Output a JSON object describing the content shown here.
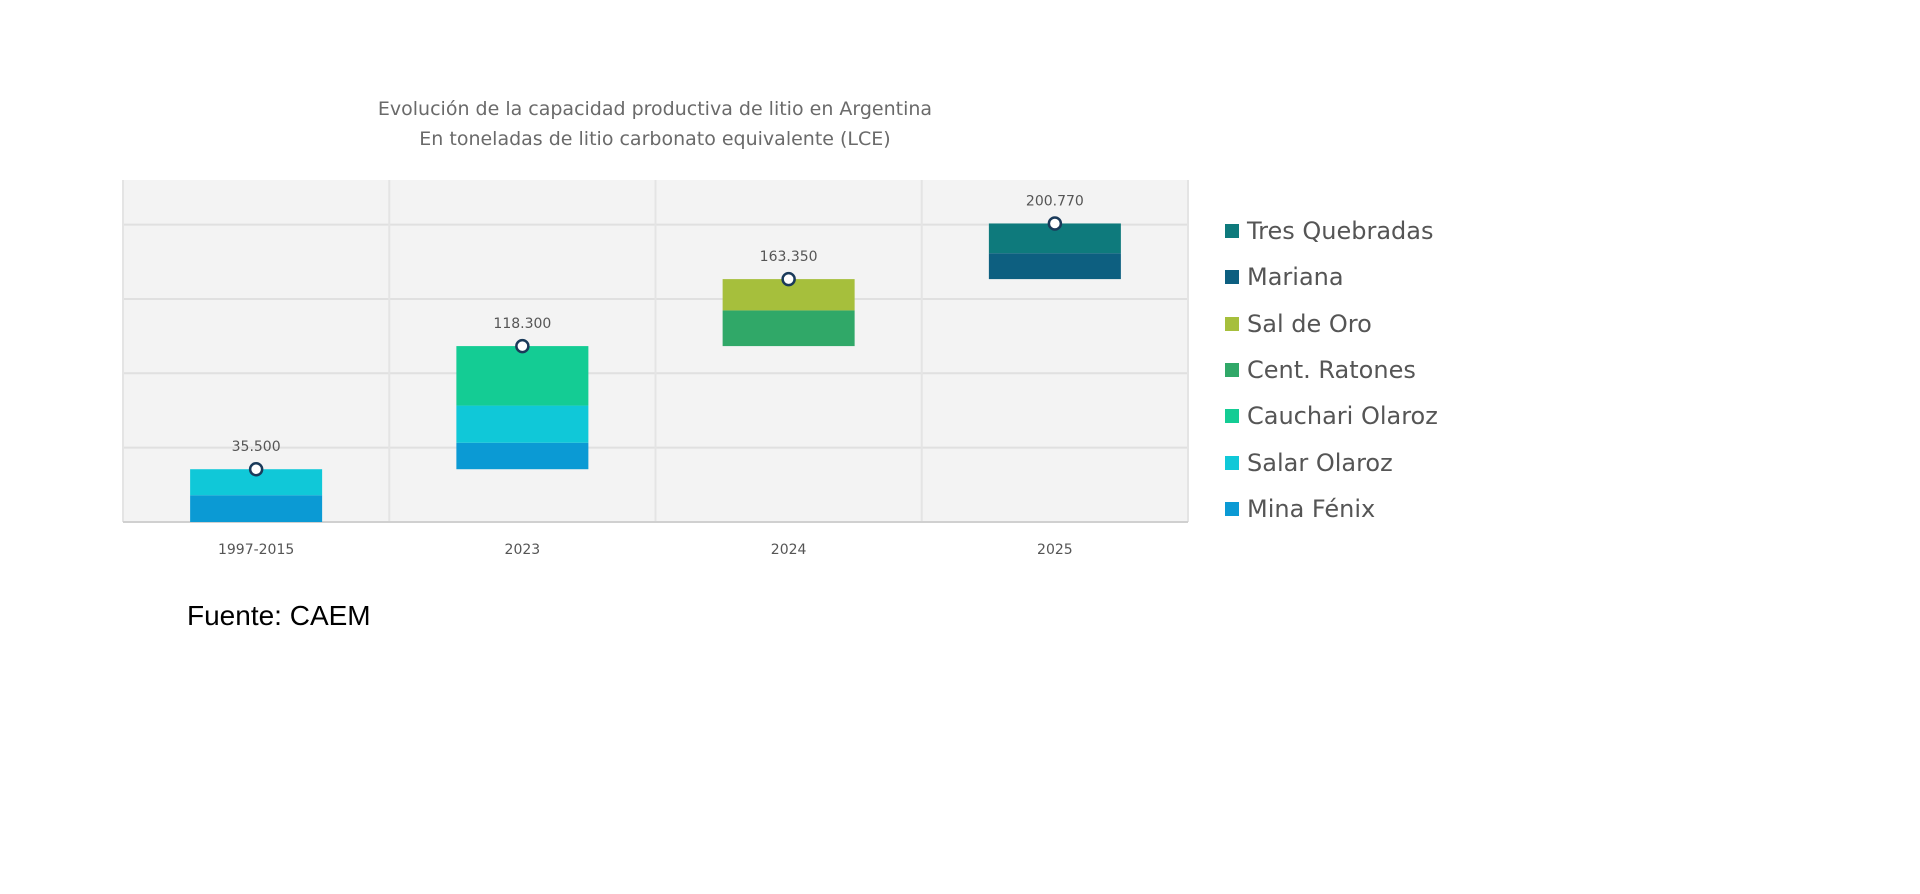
{
  "chart_data": {
    "type": "waterfall-stacked-bar",
    "title": "Evolución de la capacidad productiva de litio en Argentina",
    "subtitle": "En toneladas de litio carbonato equivalente (LCE)",
    "xlabel": "",
    "ylabel": "",
    "ylim": [
      0,
      230000
    ],
    "grid": true,
    "legend_position": "right",
    "categories": [
      "1997-2015",
      "2023",
      "2024",
      "2025"
    ],
    "totals": [
      35500,
      118300,
      163350,
      200770
    ],
    "total_labels": [
      "35.500",
      "118.300",
      "163.350",
      "200.770"
    ],
    "series": [
      {
        "name": "Mina Fénix",
        "color": "#0b9ad4",
        "values": [
          18000,
          17800,
          0,
          0
        ]
      },
      {
        "name": "Salar Olaroz",
        "color": "#10c8d8",
        "values": [
          17500,
          25000,
          0,
          0
        ]
      },
      {
        "name": "Cauchari Olaroz",
        "color": "#14cc94",
        "values": [
          0,
          40000,
          0,
          0
        ]
      },
      {
        "name": "Cent. Ratones",
        "color": "#30a868",
        "values": [
          0,
          0,
          24000,
          0
        ]
      },
      {
        "name": "Sal de Oro",
        "color": "#a6bf3c",
        "values": [
          0,
          0,
          21050,
          0
        ]
      },
      {
        "name": "Mariana",
        "color": "#0d5f80",
        "values": [
          0,
          0,
          0,
          17420
        ]
      },
      {
        "name": "Tres Quebradas",
        "color": "#0e7a7c",
        "values": [
          0,
          0,
          0,
          20000
        ]
      }
    ],
    "legend_order": [
      "Tres Quebradas",
      "Mariana",
      "Sal de Oro",
      "Cent. Ratones",
      "Cauchari Olaroz",
      "Salar Olaroz",
      "Mina Fénix"
    ]
  },
  "source": "Fuente: CAEM"
}
